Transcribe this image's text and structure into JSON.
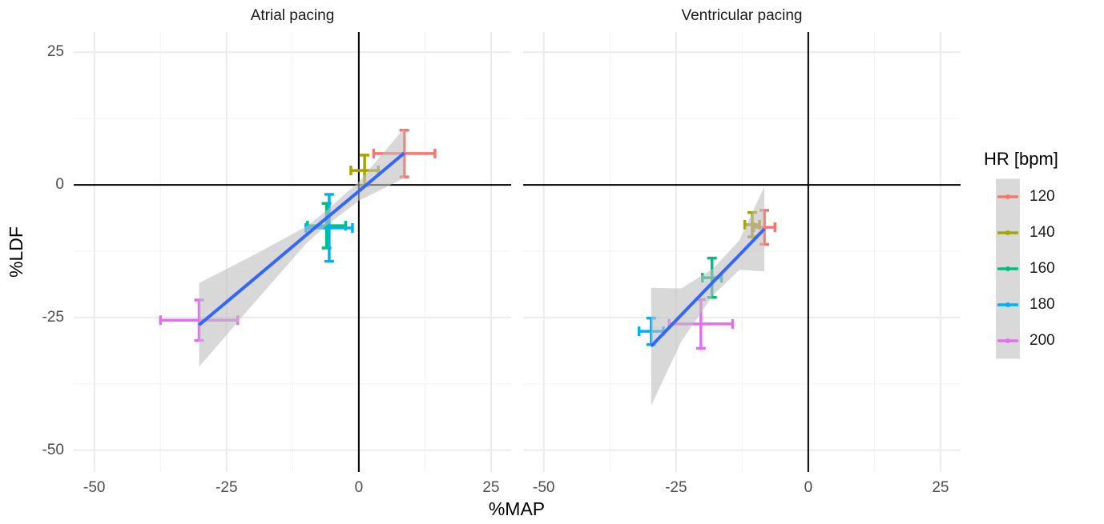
{
  "chart_data": {
    "type": "scatter",
    "x_label": "%MAP",
    "y_label": "%LDF",
    "legend_title": "HR [bpm]",
    "legend_position": "right",
    "grid": true,
    "xlim": [
      -53.9,
      28.8
    ],
    "ylim": [
      -54.1,
      28.8
    ],
    "xticks": [
      -50,
      -25,
      0,
      25
    ],
    "yticks": [
      -50,
      -25,
      0,
      25
    ],
    "reference_x": 0,
    "reference_y": 0,
    "fit_color": "#3366FF",
    "band_color": "#BEBEBE",
    "panels": [
      {
        "title": "Atrial pacing",
        "fit": {
          "x": [
            -30.2,
            -20,
            -10,
            -6.4,
            0,
            8.6
          ],
          "values": [
            -26.4,
            -17.9,
            -9.5,
            -6.5,
            -1.2,
            6.0
          ],
          "lower": [
            -34.3,
            -22.5,
            -11.1,
            -7.9,
            -3.0,
            1.3
          ],
          "upper": [
            -18.5,
            -13.3,
            -7.9,
            -5.1,
            0.6,
            10.7
          ]
        }
      },
      {
        "title": "Ventricular pacing",
        "fit": {
          "x": [
            -29.7,
            -24,
            -18,
            -13,
            -8.3
          ],
          "values": [
            -30.4,
            -24.5,
            -18.3,
            -13.2,
            -8.3
          ],
          "lower": [
            -41.6,
            -29.5,
            -20.8,
            -16.0,
            -16.3
          ],
          "upper": [
            -19.4,
            -19.5,
            -15.8,
            -10.4,
            -0.3
          ]
        }
      }
    ],
    "series": [
      {
        "name": "120",
        "color": "#F8766D",
        "x": [
          8.6,
          -8.3
        ],
        "values": [
          5.9,
          -8.0
        ],
        "x_err": [
          5.8,
          2.0
        ],
        "y_err": [
          4.4,
          3.2
        ]
      },
      {
        "name": "140",
        "color": "#A3A500",
        "x": [
          1.1,
          -10.6
        ],
        "values": [
          2.7,
          -7.5
        ],
        "x_err": [
          2.6,
          1.4
        ],
        "y_err": [
          2.9,
          2.3
        ]
      },
      {
        "name": "160",
        "color": "#00BF7D",
        "x": [
          -6.1,
          -18.2
        ],
        "values": [
          -7.7,
          -17.5
        ],
        "x_err": [
          3.6,
          1.8
        ],
        "y_err": [
          4.2,
          3.7
        ]
      },
      {
        "name": "180",
        "color": "#00B0F6",
        "x": [
          -5.6,
          -29.7
        ],
        "values": [
          -8.1,
          -27.6
        ],
        "x_err": [
          4.4,
          2.3
        ],
        "y_err": [
          6.3,
          2.5
        ]
      },
      {
        "name": "200",
        "color": "#E76BF3",
        "x": [
          -30.2,
          -20.3
        ],
        "values": [
          -25.5,
          -26.2
        ],
        "x_err": [
          7.3,
          6.0
        ],
        "y_err": [
          3.8,
          4.6
        ]
      }
    ]
  }
}
